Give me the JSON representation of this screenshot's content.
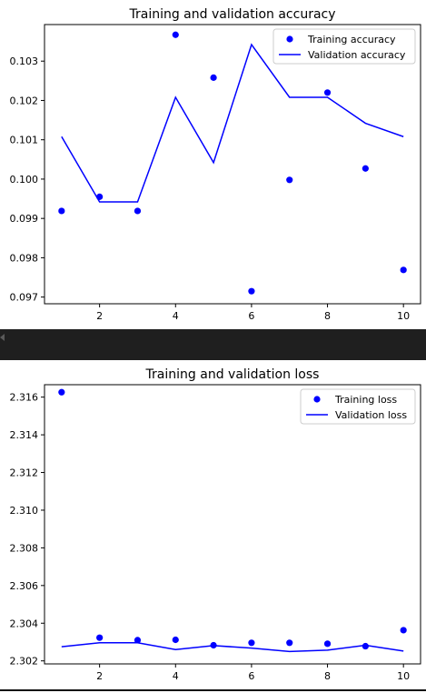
{
  "chart_data": [
    {
      "type": "line",
      "title": "Training and validation accuracy",
      "xlabel": "",
      "ylabel": "",
      "xlim": [
        0.55,
        10.45
      ],
      "ylim": [
        0.09683,
        0.10393
      ],
      "xticks": [
        2,
        4,
        6,
        8,
        10
      ],
      "xtick_labels": [
        "2",
        "4",
        "6",
        "8",
        "10"
      ],
      "yticks": [
        0.097,
        0.098,
        0.099,
        0.1,
        0.101,
        0.102,
        0.103
      ],
      "ytick_labels": [
        "0.097",
        "0.098",
        "0.099",
        "0.100",
        "0.101",
        "0.102",
        "0.103"
      ],
      "legend_position": "top-right",
      "x": [
        1,
        2,
        3,
        4,
        5,
        6,
        7,
        8,
        9,
        10
      ],
      "series": [
        {
          "name": "Training accuracy",
          "kind": "scatter",
          "color": "#0000ff",
          "values": [
            0.09919,
            0.09955,
            0.09919,
            0.10367,
            0.10258,
            0.09715,
            0.09998,
            0.1022,
            0.10027,
            0.09769
          ]
        },
        {
          "name": "Validation accuracy",
          "kind": "line",
          "color": "#0000ff",
          "values": [
            0.10108,
            0.09942,
            0.09942,
            0.10208,
            0.10042,
            0.10342,
            0.10208,
            0.10208,
            0.10142,
            0.10108
          ]
        }
      ]
    },
    {
      "type": "line",
      "title": "Training and validation loss",
      "xlabel": "",
      "ylabel": "",
      "xlim": [
        0.55,
        10.45
      ],
      "ylim": [
        2.30184,
        2.31666
      ],
      "xticks": [
        2,
        4,
        6,
        8,
        10
      ],
      "xtick_labels": [
        "2",
        "4",
        "6",
        "8",
        "10"
      ],
      "yticks": [
        2.302,
        2.304,
        2.306,
        2.308,
        2.31,
        2.312,
        2.314,
        2.316
      ],
      "ytick_labels": [
        "2.302",
        "2.304",
        "2.306",
        "2.308",
        "2.310",
        "2.312",
        "2.314",
        "2.316"
      ],
      "legend_position": "top-right",
      "x": [
        1,
        2,
        3,
        4,
        5,
        6,
        7,
        8,
        9,
        10
      ],
      "series": [
        {
          "name": "Training loss",
          "kind": "scatter",
          "color": "#0000ff",
          "values": [
            2.31626,
            2.30323,
            2.3031,
            2.30312,
            2.30283,
            2.30296,
            2.30296,
            2.30291,
            2.30278,
            2.30363
          ]
        },
        {
          "name": "Validation loss",
          "kind": "line",
          "color": "#0000ff",
          "values": [
            2.30275,
            2.30296,
            2.30296,
            2.3026,
            2.30281,
            2.30268,
            2.3025,
            2.30257,
            2.30283,
            2.30252
          ]
        }
      ]
    }
  ]
}
